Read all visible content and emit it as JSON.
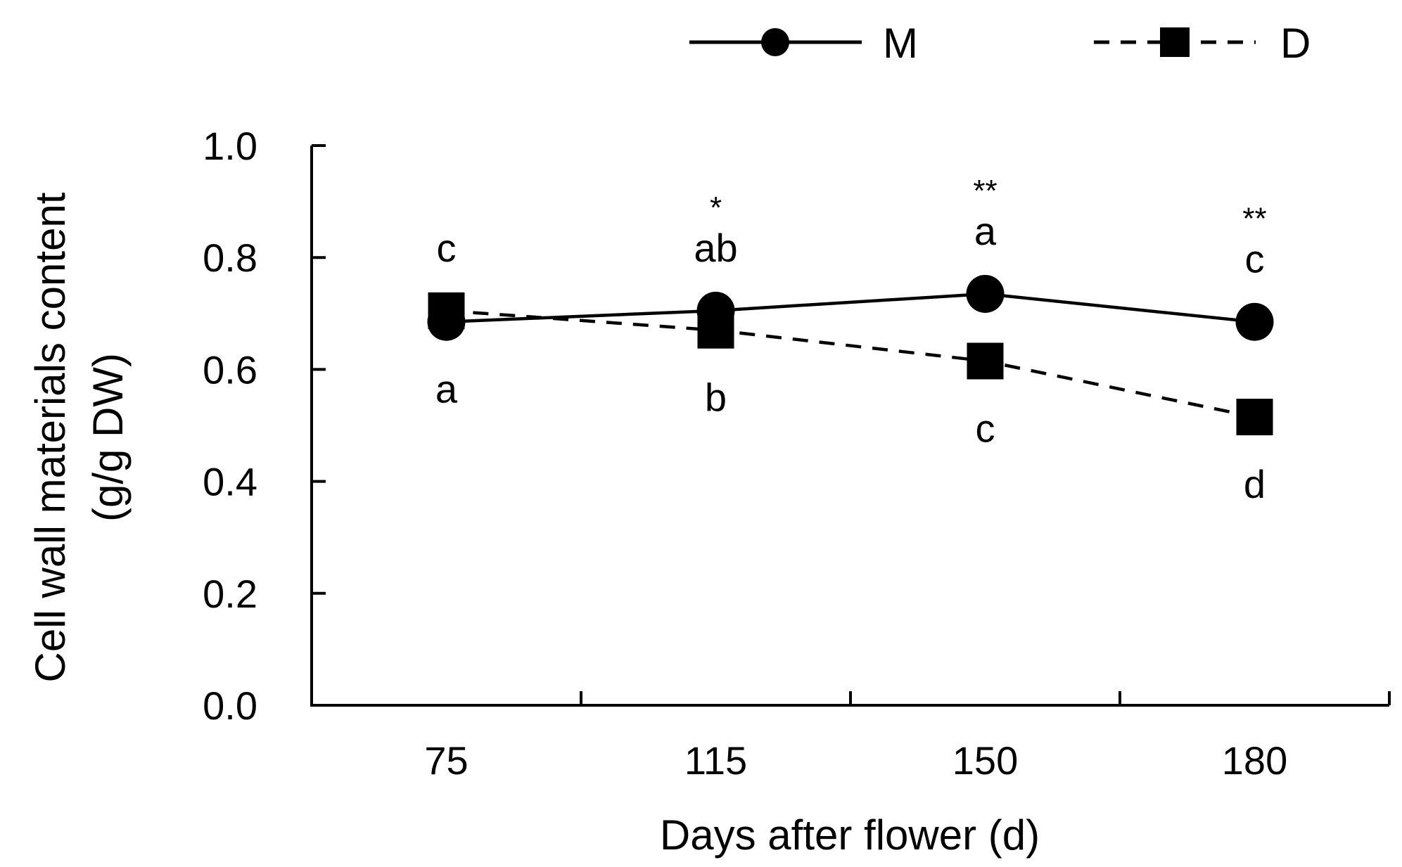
{
  "chart_data": {
    "type": "line",
    "title": "",
    "xlabel": "Days after flower (d)",
    "ylabel_line1": "Cell wall materials content",
    "ylabel_line2": "(g/g DW)",
    "categories": [
      "75",
      "115",
      "150",
      "180"
    ],
    "ylim": [
      0,
      1.0
    ],
    "yticks": [
      "0.0",
      "0.2",
      "0.4",
      "0.6",
      "0.8",
      "1.0"
    ],
    "ytick_values": [
      0,
      0.2,
      0.4,
      0.6,
      0.8,
      1.0
    ],
    "grid": false,
    "legend_position": "top-right",
    "series": [
      {
        "name": "M",
        "marker": "circle",
        "line_style": "solid",
        "values": [
          0.685,
          0.705,
          0.735,
          0.685
        ],
        "errors": [
          0.01,
          0.01,
          0.02,
          0.01
        ],
        "letters": [
          "a",
          "ab",
          "a",
          "c"
        ]
      },
      {
        "name": "D",
        "marker": "square",
        "line_style": "dashed",
        "values": [
          0.705,
          0.67,
          0.615,
          0.515
        ],
        "errors": [
          0.01,
          0.01,
          0.01,
          0.01
        ],
        "letters": [
          "c",
          "b",
          "c",
          "d"
        ]
      }
    ],
    "significance": [
      "",
      "*",
      "**",
      "**"
    ]
  }
}
